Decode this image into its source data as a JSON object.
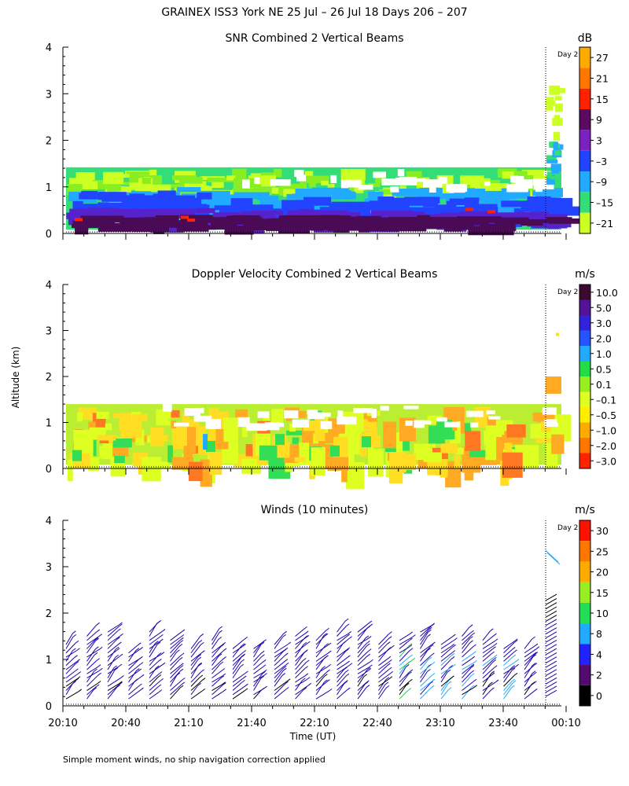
{
  "main_title": "GRAINEX ISS3 York NE  25 Jul – 26 Jul 18 Days 206 – 207",
  "footnote": "Simple moment winds, no ship navigation correction applied",
  "y_axis_label": "Altitude (km)",
  "x_axis_label": "Time (UT)",
  "day_marker_label": "Day 2",
  "chart_data": [
    {
      "type": "heatmap",
      "title": "SNR Combined 2 Vertical Beams",
      "unit": "dB",
      "ylim": [
        0,
        4
      ],
      "y_ticks": [
        "0",
        "1",
        "2",
        "3",
        "4"
      ],
      "colorbar_labels": [
        "27",
        "21",
        "15",
        "9",
        "3",
        "–3",
        "–9",
        "–15",
        "–21"
      ],
      "colorbar_colors": [
        "#ffaa00",
        "#ff7700",
        "#ff2200",
        "#5a0a60",
        "#7a22c0",
        "#2244ff",
        "#22aaff",
        "#33dd77",
        "#ccff22"
      ],
      "colors": {
        "c1": "#ccff22",
        "c2": "#88ee22",
        "c3": "#33dd77",
        "c4": "#22aaff",
        "c5": "#2244ff",
        "c6": "#5522cc",
        "c7": "#4a0a55",
        "c8": "#ff2200"
      }
    },
    {
      "type": "heatmap",
      "title": "Doppler Velocity Combined 2 Vertical Beams",
      "unit": "m/s",
      "ylim": [
        0,
        4
      ],
      "y_ticks": [
        "0",
        "1",
        "2",
        "3",
        "4"
      ],
      "colorbar_labels": [
        "10.0",
        "5.0",
        "3.0",
        "2.0",
        "1.0",
        "0.5",
        "0.1",
        "–0.1",
        "–0.5",
        "–1.0",
        "–2.0",
        "–3.0"
      ],
      "colorbar_colors": [
        "#3a0a30",
        "#551199",
        "#3322dd",
        "#2255ff",
        "#22aaff",
        "#22dd44",
        "#99ee22",
        "#ddff22",
        "#ffee00",
        "#ffaa00",
        "#ff7700",
        "#ff2200"
      ],
      "colors": {
        "c1": "#bbee33",
        "c2": "#ddff22",
        "c3": "#ffdd22",
        "c4": "#ffaa22",
        "c5": "#ff7722",
        "c6": "#33dd55",
        "c7": "#22aaff"
      }
    },
    {
      "type": "scatter",
      "title": "Winds (10 minutes)",
      "unit": "m/s",
      "ylim": [
        0,
        4
      ],
      "y_ticks": [
        "0",
        "1",
        "2",
        "3",
        "4"
      ],
      "x_ticks": [
        "20:10",
        "20:40",
        "21:10",
        "21:40",
        "22:10",
        "22:40",
        "23:10",
        "23:40",
        "00:10"
      ],
      "colorbar_labels": [
        "30",
        "25",
        "20",
        "15",
        "10",
        "8",
        "4",
        "2",
        "0"
      ],
      "colorbar_colors": [
        "#ff1100",
        "#ff7700",
        "#ffaa00",
        "#99ee22",
        "#22dd55",
        "#22aaff",
        "#2222ff",
        "#550a70",
        "#000000"
      ],
      "barb_colors": {
        "main": "#2200aa",
        "light": "#22aaff",
        "dark": "#000000",
        "green": "#22cc44"
      }
    }
  ]
}
